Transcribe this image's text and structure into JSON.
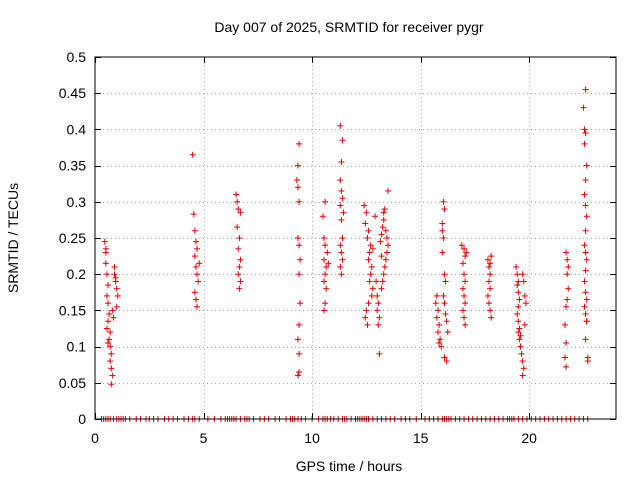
{
  "chart_data": {
    "type": "scatter",
    "title": "Day 007 of 2025, SRMTID for receiver pygr",
    "xlabel": "GPS time / hours",
    "ylabel": "SRMTID / TECUs",
    "xlim": [
      0,
      24
    ],
    "ylim": [
      0,
      0.5
    ],
    "x_ticks": [
      0,
      5,
      10,
      15,
      20
    ],
    "y_ticks": [
      0,
      0.05,
      0.1,
      0.15,
      0.2,
      0.25,
      0.3,
      0.35,
      0.4,
      0.45,
      0.5
    ],
    "x_tick_labels": [
      "0",
      "5",
      "10",
      "15",
      "20"
    ],
    "y_tick_labels": [
      "0",
      "0.05",
      "0.1",
      "0.15",
      "0.2",
      "0.25",
      "0.3",
      "0.35",
      "0.4",
      "0.45",
      "0.5"
    ],
    "grid": true,
    "marker": "+",
    "color": "#e00000",
    "series": [
      {
        "name": "SRMTID",
        "points": [
          [
            0.45,
            0.245
          ],
          [
            0.5,
            0.235
          ],
          [
            0.5,
            0.215
          ],
          [
            0.55,
            0.2
          ],
          [
            0.6,
            0.185
          ],
          [
            0.55,
            0.17
          ],
          [
            0.6,
            0.16
          ],
          [
            0.65,
            0.145
          ],
          [
            0.6,
            0.135
          ],
          [
            0.7,
            0.12
          ],
          [
            0.65,
            0.11
          ],
          [
            0.7,
            0.1
          ],
          [
            0.75,
            0.09
          ],
          [
            0.7,
            0.08
          ],
          [
            0.75,
            0.07
          ],
          [
            0.8,
            0.06
          ],
          [
            0.75,
            0.048
          ],
          [
            0.8,
            0.15
          ],
          [
            0.85,
            0.14
          ],
          [
            0.9,
            0.2
          ],
          [
            0.95,
            0.19
          ],
          [
            1.0,
            0.18
          ],
          [
            1.05,
            0.17
          ],
          [
            1.0,
            0.155
          ],
          [
            0.9,
            0.21
          ],
          [
            0.95,
            0.195
          ],
          [
            0.5,
            0.23
          ],
          [
            0.55,
            0.125
          ],
          [
            0.6,
            0.105
          ],
          [
            4.5,
            0.365
          ],
          [
            4.55,
            0.283
          ],
          [
            4.6,
            0.26
          ],
          [
            4.65,
            0.245
          ],
          [
            4.7,
            0.235
          ],
          [
            4.6,
            0.225
          ],
          [
            4.65,
            0.21
          ],
          [
            4.7,
            0.2
          ],
          [
            4.6,
            0.175
          ],
          [
            4.65,
            0.165
          ],
          [
            4.7,
            0.155
          ],
          [
            4.75,
            0.19
          ],
          [
            4.8,
            0.215
          ],
          [
            6.5,
            0.31
          ],
          [
            6.55,
            0.3
          ],
          [
            6.6,
            0.29
          ],
          [
            6.55,
            0.265
          ],
          [
            6.65,
            0.25
          ],
          [
            6.6,
            0.235
          ],
          [
            6.7,
            0.22
          ],
          [
            6.65,
            0.21
          ],
          [
            6.6,
            0.2
          ],
          [
            6.7,
            0.19
          ],
          [
            6.65,
            0.18
          ],
          [
            6.7,
            0.285
          ],
          [
            9.3,
            0.33
          ],
          [
            9.35,
            0.32
          ],
          [
            9.4,
            0.38
          ],
          [
            9.35,
            0.35
          ],
          [
            9.4,
            0.3
          ],
          [
            9.35,
            0.25
          ],
          [
            9.4,
            0.24
          ],
          [
            9.45,
            0.22
          ],
          [
            9.4,
            0.2
          ],
          [
            9.45,
            0.16
          ],
          [
            9.4,
            0.13
          ],
          [
            9.35,
            0.11
          ],
          [
            9.4,
            0.09
          ],
          [
            9.35,
            0.06
          ],
          [
            9.4,
            0.065
          ],
          [
            10.5,
            0.28
          ],
          [
            10.6,
            0.3
          ],
          [
            10.55,
            0.25
          ],
          [
            10.6,
            0.24
          ],
          [
            10.55,
            0.22
          ],
          [
            10.65,
            0.21
          ],
          [
            10.6,
            0.2
          ],
          [
            10.55,
            0.19
          ],
          [
            10.65,
            0.18
          ],
          [
            10.6,
            0.16
          ],
          [
            10.55,
            0.15
          ],
          [
            10.7,
            0.23
          ],
          [
            10.75,
            0.215
          ],
          [
            11.3,
            0.405
          ],
          [
            11.4,
            0.385
          ],
          [
            11.35,
            0.355
          ],
          [
            11.3,
            0.33
          ],
          [
            11.35,
            0.315
          ],
          [
            11.4,
            0.305
          ],
          [
            11.3,
            0.295
          ],
          [
            11.45,
            0.285
          ],
          [
            11.35,
            0.275
          ],
          [
            11.4,
            0.25
          ],
          [
            11.3,
            0.24
          ],
          [
            11.35,
            0.23
          ],
          [
            11.4,
            0.22
          ],
          [
            11.3,
            0.21
          ],
          [
            11.35,
            0.2
          ],
          [
            12.4,
            0.295
          ],
          [
            12.5,
            0.285
          ],
          [
            12.45,
            0.27
          ],
          [
            12.6,
            0.26
          ],
          [
            12.55,
            0.25
          ],
          [
            12.7,
            0.24
          ],
          [
            12.65,
            0.23
          ],
          [
            12.6,
            0.22
          ],
          [
            12.75,
            0.21
          ],
          [
            12.7,
            0.2
          ],
          [
            12.65,
            0.19
          ],
          [
            12.8,
            0.18
          ],
          [
            12.75,
            0.17
          ],
          [
            12.6,
            0.16
          ],
          [
            12.5,
            0.15
          ],
          [
            12.45,
            0.14
          ],
          [
            12.55,
            0.13
          ],
          [
            12.9,
            0.28
          ],
          [
            12.95,
            0.19
          ],
          [
            13.0,
            0.17
          ],
          [
            13.05,
            0.16
          ],
          [
            13.0,
            0.15
          ],
          [
            13.1,
            0.14
          ],
          [
            13.05,
            0.13
          ],
          [
            13.1,
            0.09
          ],
          [
            13.15,
            0.245
          ],
          [
            13.2,
            0.255
          ],
          [
            13.25,
            0.265
          ],
          [
            13.3,
            0.275
          ],
          [
            13.35,
            0.29
          ],
          [
            13.4,
            0.26
          ],
          [
            13.45,
            0.25
          ],
          [
            13.5,
            0.24
          ],
          [
            13.45,
            0.23
          ],
          [
            13.4,
            0.22
          ],
          [
            13.35,
            0.21
          ],
          [
            13.3,
            0.2
          ],
          [
            13.25,
            0.19
          ],
          [
            13.2,
            0.18
          ],
          [
            13.5,
            0.315
          ],
          [
            13.3,
            0.285
          ],
          [
            12.8,
            0.235
          ],
          [
            13.2,
            0.225
          ],
          [
            15.7,
            0.16
          ],
          [
            15.75,
            0.17
          ],
          [
            15.8,
            0.15
          ],
          [
            15.75,
            0.14
          ],
          [
            15.85,
            0.13
          ],
          [
            15.8,
            0.12
          ],
          [
            15.9,
            0.11
          ],
          [
            15.85,
            0.105
          ],
          [
            15.95,
            0.1
          ],
          [
            16.0,
            0.27
          ],
          [
            16.05,
            0.3
          ],
          [
            16.1,
            0.29
          ],
          [
            16.05,
            0.25
          ],
          [
            16.0,
            0.23
          ],
          [
            16.1,
            0.2
          ],
          [
            16.15,
            0.19
          ],
          [
            16.05,
            0.17
          ],
          [
            16.1,
            0.16
          ],
          [
            16.15,
            0.145
          ],
          [
            16.2,
            0.135
          ],
          [
            16.25,
            0.12
          ],
          [
            16.2,
            0.08
          ],
          [
            16.1,
            0.085
          ],
          [
            16.0,
            0.26
          ],
          [
            16.9,
            0.24
          ],
          [
            17.0,
            0.235
          ],
          [
            17.05,
            0.225
          ],
          [
            16.95,
            0.215
          ],
          [
            17.0,
            0.2
          ],
          [
            17.05,
            0.19
          ],
          [
            16.95,
            0.18
          ],
          [
            17.0,
            0.17
          ],
          [
            17.05,
            0.16
          ],
          [
            16.95,
            0.15
          ],
          [
            17.0,
            0.14
          ],
          [
            17.05,
            0.13
          ],
          [
            17.1,
            0.23
          ],
          [
            18.1,
            0.22
          ],
          [
            18.15,
            0.21
          ],
          [
            18.2,
            0.2
          ],
          [
            18.15,
            0.19
          ],
          [
            18.2,
            0.18
          ],
          [
            18.1,
            0.17
          ],
          [
            18.15,
            0.16
          ],
          [
            18.2,
            0.15
          ],
          [
            18.25,
            0.14
          ],
          [
            18.2,
            0.215
          ],
          [
            18.25,
            0.225
          ],
          [
            19.4,
            0.21
          ],
          [
            19.45,
            0.2
          ],
          [
            19.5,
            0.19
          ],
          [
            19.45,
            0.185
          ],
          [
            19.5,
            0.175
          ],
          [
            19.55,
            0.165
          ],
          [
            19.5,
            0.155
          ],
          [
            19.45,
            0.145
          ],
          [
            19.5,
            0.135
          ],
          [
            19.55,
            0.125
          ],
          [
            19.5,
            0.12
          ],
          [
            19.6,
            0.115
          ],
          [
            19.55,
            0.11
          ],
          [
            19.6,
            0.1
          ],
          [
            19.65,
            0.09
          ],
          [
            19.7,
            0.08
          ],
          [
            19.75,
            0.07
          ],
          [
            19.7,
            0.06
          ],
          [
            19.8,
            0.17
          ],
          [
            19.85,
            0.16
          ],
          [
            19.8,
            0.13
          ],
          [
            19.75,
            0.19
          ],
          [
            19.7,
            0.2
          ],
          [
            21.7,
            0.23
          ],
          [
            21.75,
            0.22
          ],
          [
            21.8,
            0.21
          ],
          [
            21.75,
            0.2
          ],
          [
            21.8,
            0.18
          ],
          [
            21.75,
            0.165
          ],
          [
            21.7,
            0.155
          ],
          [
            21.65,
            0.13
          ],
          [
            21.7,
            0.105
          ],
          [
            21.65,
            0.085
          ],
          [
            21.7,
            0.072
          ],
          [
            22.5,
            0.43
          ],
          [
            22.6,
            0.455
          ],
          [
            22.55,
            0.4
          ],
          [
            22.6,
            0.395
          ],
          [
            22.55,
            0.38
          ],
          [
            22.65,
            0.35
          ],
          [
            22.6,
            0.33
          ],
          [
            22.55,
            0.31
          ],
          [
            22.6,
            0.295
          ],
          [
            22.65,
            0.28
          ],
          [
            22.6,
            0.26
          ],
          [
            22.55,
            0.24
          ],
          [
            22.6,
            0.23
          ],
          [
            22.65,
            0.22
          ],
          [
            22.6,
            0.205
          ],
          [
            22.55,
            0.19
          ],
          [
            22.6,
            0.175
          ],
          [
            22.65,
            0.165
          ],
          [
            22.55,
            0.155
          ],
          [
            22.6,
            0.145
          ],
          [
            22.65,
            0.135
          ],
          [
            22.6,
            0.11
          ],
          [
            22.7,
            0.085
          ],
          [
            22.7,
            0.08
          ],
          [
            22.65,
            0.135
          ]
        ],
        "zero_points": [
          0.3,
          0.4,
          0.5,
          0.6,
          0.7,
          0.85,
          1.0,
          1.1,
          1.2,
          1.3,
          1.4,
          1.6,
          1.9,
          2.1,
          2.35,
          2.5,
          2.7,
          2.9,
          3.2,
          3.4,
          3.6,
          3.8,
          4.1,
          4.3,
          4.5,
          4.6,
          4.8,
          5.2,
          5.5,
          5.8,
          6.0,
          6.1,
          6.2,
          6.3,
          6.4,
          6.5,
          6.7,
          6.9,
          7.0,
          7.1,
          7.3,
          7.6,
          7.8,
          8.0,
          8.3,
          8.5,
          8.8,
          9.0,
          9.1,
          9.2,
          9.35,
          9.5,
          9.7,
          10.0,
          10.3,
          10.5,
          10.6,
          10.7,
          10.85,
          11.0,
          11.2,
          11.4,
          11.5,
          11.6,
          11.8,
          12.0,
          12.1,
          12.2,
          12.3,
          12.4,
          12.5,
          12.6,
          12.8,
          13.0,
          13.2,
          13.4,
          13.6,
          13.8,
          14.1,
          14.3,
          14.5,
          14.8,
          15.2,
          15.4,
          15.6,
          15.8,
          16.0,
          16.1,
          16.2,
          16.3,
          16.4,
          16.6,
          16.8,
          17.0,
          17.2,
          17.4,
          17.6,
          17.8,
          18.0,
          18.2,
          18.4,
          18.6,
          18.8,
          19.0,
          19.1,
          19.2,
          19.3,
          19.5,
          19.7,
          19.9,
          20.1,
          20.3,
          20.5,
          20.7,
          20.9,
          21.1,
          21.3,
          21.5,
          21.7,
          21.9,
          22.1,
          22.3,
          22.5,
          22.7
        ]
      }
    ]
  }
}
